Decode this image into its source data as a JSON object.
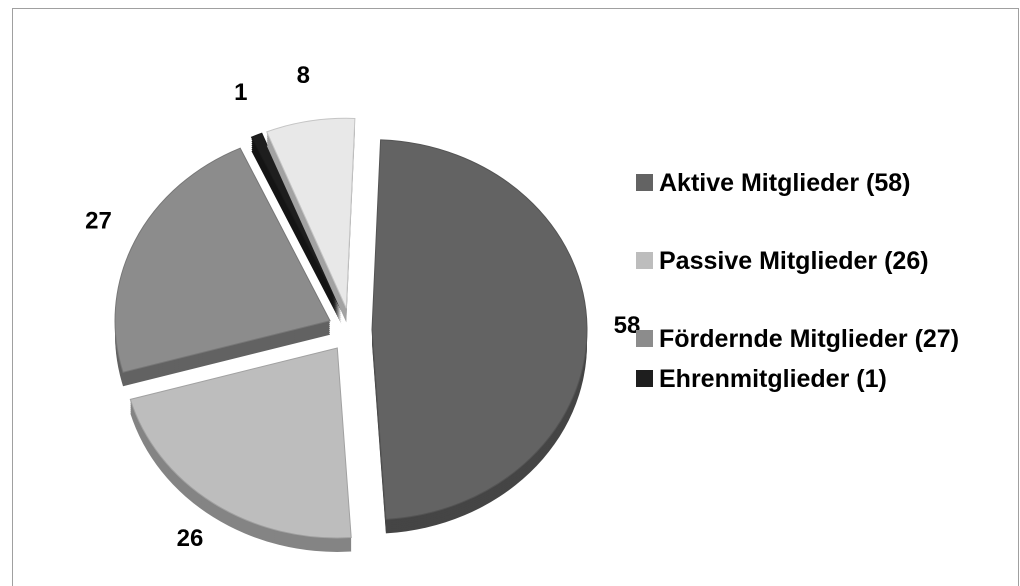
{
  "chart_data": {
    "type": "pie",
    "categories": [
      "Aktive Mitglieder (58)",
      "Passive Mitglieder (26)",
      "Fördernde Mitglieder (27)",
      "Ehrenmitglieder (1)",
      null
    ],
    "values": [
      58,
      26,
      27,
      1,
      8
    ],
    "colors": [
      "#636363",
      "#bdbdbd",
      "#8c8c8c",
      "#1e1e1e",
      "#e8e8e8"
    ],
    "legend": "right"
  }
}
